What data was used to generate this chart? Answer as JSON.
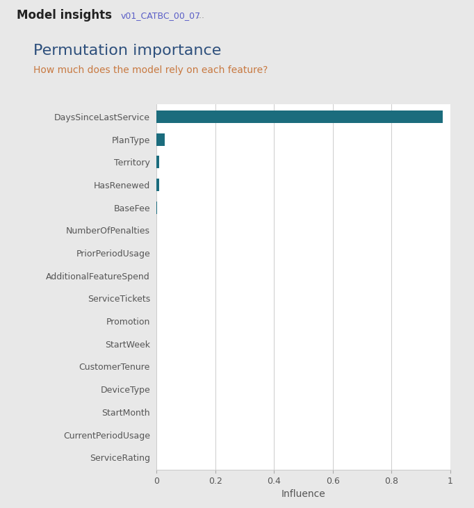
{
  "title": "Permutation importance",
  "subtitle": "How much does the model rely on each feature?",
  "header_title": "Model insights",
  "header_subtitle": "v01_CATBC_00_07",
  "header_dots": "...",
  "xlabel": "Influence",
  "features": [
    "DaysSinceLastService",
    "PlanType",
    "Territory",
    "HasRenewed",
    "BaseFee",
    "NumberOfPenalties",
    "PriorPeriodUsage",
    "AdditionalFeatureSpend",
    "ServiceTickets",
    "Promotion",
    "StartWeek",
    "CustomerTenure",
    "DeviceType",
    "StartMonth",
    "CurrentPeriodUsage",
    "ServiceRating"
  ],
  "values": [
    0.975,
    0.028,
    0.01,
    0.009,
    0.003,
    0.0,
    0.0,
    0.0,
    0.0,
    0.0,
    0.0,
    0.0,
    0.0,
    0.0,
    0.0,
    0.0
  ],
  "bar_color": "#1b6c7d",
  "title_color": "#2d4f7c",
  "subtitle_color": "#c87941",
  "header_title_color": "#222222",
  "header_sub_color": "#5b5fc7",
  "outer_bg": "#e8e8e8",
  "panel_bg": "#ffffff",
  "xlim": [
    0,
    1.0
  ],
  "xticks": [
    0,
    0.2,
    0.4,
    0.6,
    0.8,
    1.0
  ],
  "xtick_labels": [
    "0",
    "0.2",
    "0.4",
    "0.6",
    "0.8",
    "1"
  ],
  "grid_color": "#cccccc",
  "title_fontsize": 16,
  "subtitle_fontsize": 10,
  "tick_fontsize": 9,
  "xlabel_fontsize": 10,
  "header_title_fontsize": 12,
  "header_sub_fontsize": 9
}
